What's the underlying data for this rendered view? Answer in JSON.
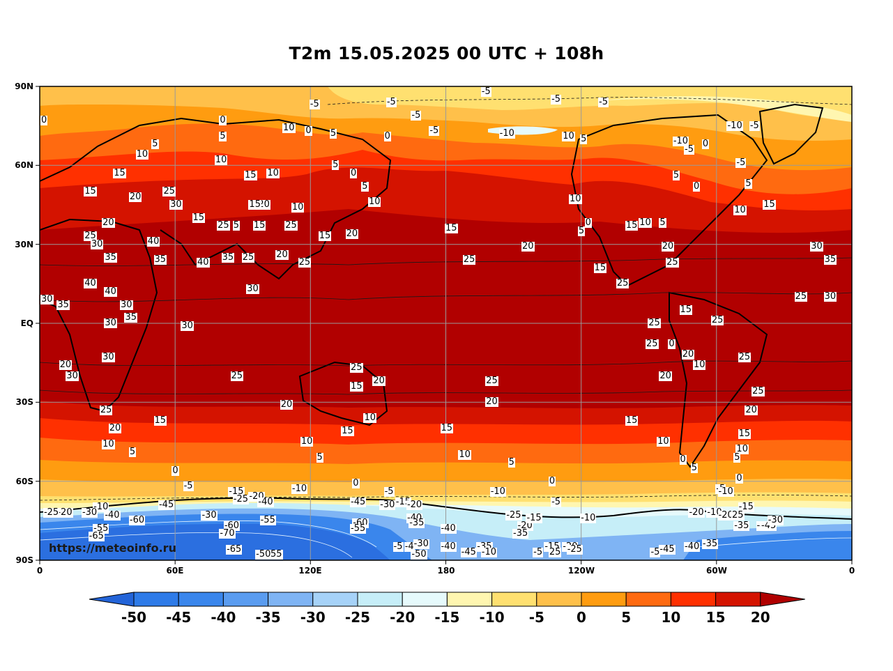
{
  "title": "T2m 15.05.2025 00 UTC + 108h",
  "watermark": "https://meteoinfo.ru",
  "lat_labels": [
    "90N",
    "60N",
    "30N",
    "EQ",
    "30S",
    "60S",
    "90S"
  ],
  "lon_labels": [
    "0",
    "60E",
    "120E",
    "180",
    "120W",
    "60W",
    "0"
  ],
  "colorbar": {
    "ticks": [
      "-50",
      "-45",
      "-40",
      "-35",
      "-30",
      "-25",
      "-20",
      "-15",
      "-10",
      "-5",
      "0",
      "5",
      "10",
      "15",
      "20"
    ],
    "colors": [
      "#2b6fe0",
      "#2e7be8",
      "#3a86ec",
      "#5a9cf0",
      "#7fb4f4",
      "#a6d2f8",
      "#c6eef8",
      "#e6fafc",
      "#fff6b0",
      "#ffe070",
      "#ffc04a",
      "#ff9c10",
      "#ff6a10",
      "#ff3000",
      "#d41300",
      "#b10000"
    ],
    "low_color": "#2364d8",
    "high_color": "#b00000"
  },
  "contour_labels": [
    {
      "t": "-5",
      "lon": 122,
      "lat": 83
    },
    {
      "t": "-5",
      "lon": 156,
      "lat": 84
    },
    {
      "t": "-5",
      "lon": 198,
      "lat": 88
    },
    {
      "t": "-5",
      "lon": 250,
      "lat": 84
    },
    {
      "t": "-5",
      "lon": 167,
      "lat": 79
    },
    {
      "t": "-5",
      "lon": 229,
      "lat": 85
    },
    {
      "t": "-5",
      "lon": 175,
      "lat": 73
    },
    {
      "t": "-10",
      "lon": 206,
      "lat": 72
    },
    {
      "t": "-10",
      "lon": 307,
      "lat": 75
    },
    {
      "t": "-5",
      "lon": 317,
      "lat": 75
    },
    {
      "t": "0",
      "lon": 82,
      "lat": 77
    },
    {
      "t": "5",
      "lon": 82,
      "lat": 71
    },
    {
      "t": "10",
      "lon": 110,
      "lat": 74
    },
    {
      "t": "0",
      "lon": 120,
      "lat": 73
    },
    {
      "t": "5",
      "lon": 131,
      "lat": 72
    },
    {
      "t": "0",
      "lon": 155,
      "lat": 71
    },
    {
      "t": "10",
      "lon": 45,
      "lat": 64
    },
    {
      "t": "5",
      "lon": 52,
      "lat": 68
    },
    {
      "t": "10",
      "lon": 80,
      "lat": 62
    },
    {
      "t": "5",
      "lon": 132,
      "lat": 60
    },
    {
      "t": "0",
      "lon": 140,
      "lat": 57
    },
    {
      "t": "5",
      "lon": 145,
      "lat": 52
    },
    {
      "t": "10",
      "lon": 148,
      "lat": 46
    },
    {
      "t": "15",
      "lon": 93,
      "lat": 56
    },
    {
      "t": "10",
      "lon": 103,
      "lat": 57
    },
    {
      "t": "15",
      "lon": 35,
      "lat": 57
    },
    {
      "t": "15",
      "lon": 22,
      "lat": 50
    },
    {
      "t": "20",
      "lon": 42,
      "lat": 48
    },
    {
      "t": "25",
      "lon": 57,
      "lat": 50
    },
    {
      "t": "30",
      "lon": 60,
      "lat": 45
    },
    {
      "t": "20",
      "lon": 30,
      "lat": 38
    },
    {
      "t": "25",
      "lon": 22,
      "lat": 33
    },
    {
      "t": "30",
      "lon": 25,
      "lat": 30
    },
    {
      "t": "35",
      "lon": 31,
      "lat": 25
    },
    {
      "t": "40",
      "lon": 50,
      "lat": 31
    },
    {
      "t": "35",
      "lon": 53,
      "lat": 24
    },
    {
      "t": "40",
      "lon": 72,
      "lat": 23
    },
    {
      "t": "35",
      "lon": 83,
      "lat": 25
    },
    {
      "t": "25",
      "lon": 92,
      "lat": 25
    },
    {
      "t": "20",
      "lon": 107,
      "lat": 26
    },
    {
      "t": "25",
      "lon": 117,
      "lat": 23
    },
    {
      "t": "30",
      "lon": 94,
      "lat": 13
    },
    {
      "t": "15",
      "lon": 70,
      "lat": 40
    },
    {
      "t": "25",
      "lon": 81,
      "lat": 37
    },
    {
      "t": "5",
      "lon": 88,
      "lat": 37
    },
    {
      "t": "15",
      "lon": 97,
      "lat": 37
    },
    {
      "t": "20",
      "lon": 99,
      "lat": 45
    },
    {
      "t": "15",
      "lon": 95,
      "lat": 45
    },
    {
      "t": "10",
      "lon": 114,
      "lat": 44
    },
    {
      "t": "25",
      "lon": 111,
      "lat": 37
    },
    {
      "t": "15",
      "lon": 126,
      "lat": 33
    },
    {
      "t": "20",
      "lon": 138,
      "lat": 34
    },
    {
      "t": "15",
      "lon": 182,
      "lat": 36
    },
    {
      "t": "25",
      "lon": 190,
      "lat": 24
    },
    {
      "t": "20",
      "lon": 216,
      "lat": 29
    },
    {
      "t": "40",
      "lon": 22,
      "lat": 15
    },
    {
      "t": "40",
      "lon": 31,
      "lat": 12
    },
    {
      "t": "35",
      "lon": 10,
      "lat": 7
    },
    {
      "t": "30",
      "lon": 38,
      "lat": 7
    },
    {
      "t": "35",
      "lon": 40,
      "lat": 2
    },
    {
      "t": "30",
      "lon": 31,
      "lat": 0
    },
    {
      "t": "30",
      "lon": 65,
      "lat": -1
    },
    {
      "t": "30",
      "lon": 30,
      "lat": -13
    },
    {
      "t": "20",
      "lon": 11,
      "lat": -16
    },
    {
      "t": "30",
      "lon": 14,
      "lat": -20
    },
    {
      "t": "25",
      "lon": 29,
      "lat": -33
    },
    {
      "t": "20",
      "lon": 33,
      "lat": -40
    },
    {
      "t": "10",
      "lon": 30,
      "lat": -46
    },
    {
      "t": "5",
      "lon": 42,
      "lat": -49
    },
    {
      "t": "15",
      "lon": 53,
      "lat": -37
    },
    {
      "t": "25",
      "lon": 87,
      "lat": -20
    },
    {
      "t": "20",
      "lon": 109,
      "lat": -31
    },
    {
      "t": "10",
      "lon": 118,
      "lat": -45
    },
    {
      "t": "5",
      "lon": 125,
      "lat": -51
    },
    {
      "t": "25",
      "lon": 140,
      "lat": -17
    },
    {
      "t": "15",
      "lon": 140,
      "lat": -24
    },
    {
      "t": "20",
      "lon": 150,
      "lat": -22
    },
    {
      "t": "10",
      "lon": 146,
      "lat": -36
    },
    {
      "t": "15",
      "lon": 136,
      "lat": -41
    },
    {
      "t": "15",
      "lon": 180,
      "lat": -40
    },
    {
      "t": "10",
      "lon": 188,
      "lat": -50
    },
    {
      "t": "5",
      "lon": 210,
      "lat": -53
    },
    {
      "t": "25",
      "lon": 200,
      "lat": -22
    },
    {
      "t": "20",
      "lon": 200,
      "lat": -30
    },
    {
      "t": "0",
      "lon": 61,
      "lat": -56
    },
    {
      "t": "-5",
      "lon": 66,
      "lat": -62
    },
    {
      "t": "0",
      "lon": 141,
      "lat": -61
    },
    {
      "t": "-10",
      "lon": 114,
      "lat": -63
    },
    {
      "t": "-5",
      "lon": 155,
      "lat": -64
    },
    {
      "t": "0",
      "lon": 228,
      "lat": -60
    },
    {
      "t": "-10",
      "lon": 202,
      "lat": -64
    },
    {
      "t": "-5",
      "lon": 229,
      "lat": -68
    },
    {
      "t": "-15",
      "lon": 86,
      "lat": -64
    },
    {
      "t": "-20",
      "lon": 95,
      "lat": -66
    },
    {
      "t": "-25",
      "lon": 88,
      "lat": -67
    },
    {
      "t": "-40",
      "lon": 99,
      "lat": -68
    },
    {
      "t": "-15",
      "lon": 160,
      "lat": -68
    },
    {
      "t": "-20",
      "lon": 165,
      "lat": -69
    },
    {
      "t": "-30",
      "lon": 153,
      "lat": -69
    },
    {
      "t": "-45",
      "lon": 140,
      "lat": -68
    },
    {
      "t": "-10",
      "lon": 26,
      "lat": -70
    },
    {
      "t": "-20",
      "lon": 10,
      "lat": -72
    },
    {
      "t": "-25",
      "lon": 4,
      "lat": -72
    },
    {
      "t": "-30",
      "lon": 21,
      "lat": -72
    },
    {
      "t": "-40",
      "lon": 31,
      "lat": -73
    },
    {
      "t": "-45",
      "lon": 55,
      "lat": -69
    },
    {
      "t": "-60",
      "lon": 42,
      "lat": -75
    },
    {
      "t": "-30",
      "lon": 74,
      "lat": -73
    },
    {
      "t": "-55",
      "lon": 100,
      "lat": -75
    },
    {
      "t": "-60",
      "lon": 141,
      "lat": -76
    },
    {
      "t": "-55",
      "lon": 140,
      "lat": -78
    },
    {
      "t": "-40",
      "lon": 180,
      "lat": -78
    },
    {
      "t": "-40",
      "lon": 165,
      "lat": -74
    },
    {
      "t": "-35",
      "lon": 166,
      "lat": -76
    },
    {
      "t": "-55",
      "lon": 26,
      "lat": -78
    },
    {
      "t": "-65",
      "lon": 24,
      "lat": -81
    },
    {
      "t": "-60",
      "lon": 84,
      "lat": -77
    },
    {
      "t": "-70",
      "lon": 82,
      "lat": -80
    },
    {
      "t": "-65",
      "lon": 85,
      "lat": -86
    },
    {
      "t": "-55",
      "lon": 103,
      "lat": -88
    },
    {
      "t": "-50",
      "lon": 98,
      "lat": -88
    },
    {
      "t": "-5",
      "lon": 159,
      "lat": -85
    },
    {
      "t": "-4",
      "lon": 164,
      "lat": -85
    },
    {
      "t": "-30",
      "lon": 168,
      "lat": -84
    },
    {
      "t": "-50",
      "lon": 167,
      "lat": -88
    },
    {
      "t": "-40",
      "lon": 180,
      "lat": -85
    },
    {
      "t": "-45",
      "lon": 189,
      "lat": -87
    },
    {
      "t": "-35",
      "lon": 196,
      "lat": -85
    },
    {
      "t": "-10",
      "lon": 198,
      "lat": -87
    },
    {
      "t": "-25",
      "lon": 209,
      "lat": -73
    },
    {
      "t": "-20",
      "lon": 214,
      "lat": -77
    },
    {
      "t": "-35",
      "lon": 212,
      "lat": -80
    },
    {
      "t": "-15",
      "lon": 218,
      "lat": -74
    },
    {
      "t": "-15",
      "lon": 226,
      "lat": -85
    },
    {
      "t": "-20",
      "lon": 234,
      "lat": -85
    },
    {
      "t": "-25",
      "lon": 236,
      "lat": -86
    },
    {
      "t": "-10",
      "lon": 242,
      "lat": -74
    },
    {
      "t": "25",
      "lon": 228,
      "lat": -87
    },
    {
      "t": "-5",
      "lon": 221,
      "lat": -87
    },
    {
      "t": "10",
      "lon": 237,
      "lat": 47
    },
    {
      "t": "5",
      "lon": 242,
      "lat": 70
    },
    {
      "t": "10",
      "lon": 234,
      "lat": 71
    },
    {
      "t": "5",
      "lon": 241,
      "lat": 35
    },
    {
      "t": "0",
      "lon": 244,
      "lat": 38
    },
    {
      "t": "15",
      "lon": 262,
      "lat": 37
    },
    {
      "t": "10",
      "lon": 268,
      "lat": 38
    },
    {
      "t": "5",
      "lon": 277,
      "lat": 38
    },
    {
      "t": "20",
      "lon": 278,
      "lat": 29
    },
    {
      "t": "25",
      "lon": 280,
      "lat": 23
    },
    {
      "t": "15",
      "lon": 248,
      "lat": 21
    },
    {
      "t": "25",
      "lon": 258,
      "lat": 15
    },
    {
      "t": "15",
      "lon": 286,
      "lat": 5
    },
    {
      "t": "25",
      "lon": 272,
      "lat": 0
    },
    {
      "t": "25",
      "lon": 300,
      "lat": 1
    },
    {
      "t": "25",
      "lon": 271,
      "lat": -8
    },
    {
      "t": "0",
      "lon": 281,
      "lat": -8
    },
    {
      "t": "20",
      "lon": 287,
      "lat": -12
    },
    {
      "t": "10",
      "lon": 292,
      "lat": -16
    },
    {
      "t": "20",
      "lon": 277,
      "lat": -20
    },
    {
      "t": "25",
      "lon": 312,
      "lat": -13
    },
    {
      "t": "25",
      "lon": 318,
      "lat": -26
    },
    {
      "t": "20",
      "lon": 315,
      "lat": -33
    },
    {
      "t": "15",
      "lon": 312,
      "lat": -42
    },
    {
      "t": "10",
      "lon": 311,
      "lat": -48
    },
    {
      "t": "5",
      "lon": 310,
      "lat": -51
    },
    {
      "t": "10",
      "lon": 276,
      "lat": -45
    },
    {
      "t": "15",
      "lon": 262,
      "lat": -37
    },
    {
      "t": "0",
      "lon": 286,
      "lat": -52
    },
    {
      "t": "5",
      "lon": 291,
      "lat": -55
    },
    {
      "t": "0",
      "lon": 311,
      "lat": -59
    },
    {
      "t": "-5",
      "lon": 302,
      "lat": -63
    },
    {
      "t": "-10",
      "lon": 303,
      "lat": -64
    },
    {
      "t": "-15",
      "lon": 312,
      "lat": -70
    },
    {
      "t": "-20",
      "lon": 290,
      "lat": -72
    },
    {
      "t": "-10",
      "lon": 298,
      "lat": -72
    },
    {
      "t": "-20",
      "lon": 303,
      "lat": -73
    },
    {
      "t": "25",
      "lon": 309,
      "lat": -73
    },
    {
      "t": "-35",
      "lon": 310,
      "lat": -77
    },
    {
      "t": "-40",
      "lon": 320,
      "lat": -77
    },
    {
      "t": "-45",
      "lon": 322,
      "lat": -77
    },
    {
      "t": "-30",
      "lon": 325,
      "lat": -75
    },
    {
      "t": "-35",
      "lon": 296,
      "lat": -84
    },
    {
      "t": "-40",
      "lon": 288,
      "lat": -85
    },
    {
      "t": "-45",
      "lon": 277,
      "lat": -86
    },
    {
      "t": "-5",
      "lon": 273,
      "lat": -87
    },
    {
      "t": "10",
      "lon": 310,
      "lat": 43
    },
    {
      "t": "15",
      "lon": 323,
      "lat": 45
    },
    {
      "t": "5",
      "lon": 315,
      "lat": 53
    },
    {
      "t": "0",
      "lon": 292,
      "lat": 52
    },
    {
      "t": "-5",
      "lon": 311,
      "lat": 61
    },
    {
      "t": "0",
      "lon": 296,
      "lat": 68
    },
    {
      "t": "-10",
      "lon": 283,
      "lat": 69
    },
    {
      "t": "-5",
      "lon": 288,
      "lat": 66
    },
    {
      "t": "5",
      "lon": 283,
      "lat": 56
    },
    {
      "t": "30",
      "lon": 344,
      "lat": 29
    },
    {
      "t": "35",
      "lon": 350,
      "lat": 24
    },
    {
      "t": "25",
      "lon": 337,
      "lat": 10
    },
    {
      "t": "30",
      "lon": 350,
      "lat": 10
    },
    {
      "t": "30",
      "lon": 1,
      "lat": 9
    },
    {
      "t": "0",
      "lon": 1,
      "lat": 77
    }
  ]
}
